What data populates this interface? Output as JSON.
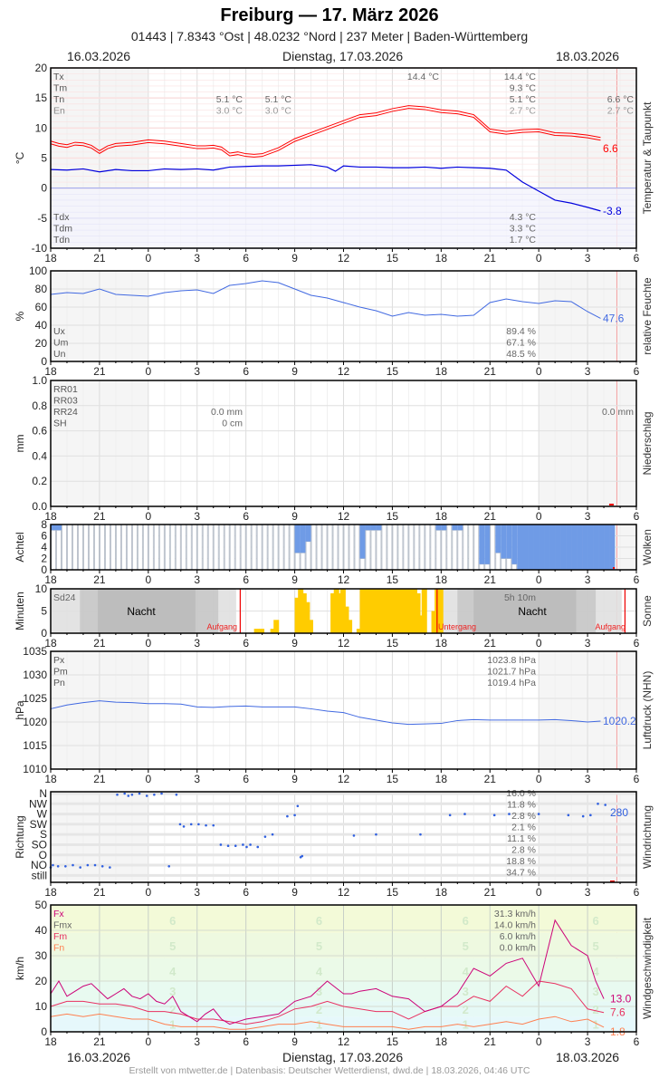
{
  "header": {
    "title": "Freiburg  —  17. März 2026",
    "subtitle": "01443  |  7.8343 °Ost  |  48.0232 °Nord  |  237 Meter  |  Baden-Württemberg",
    "date_left": "16.03.2026",
    "date_center": "Dienstag, 17.03.2026",
    "date_right": "18.03.2026"
  },
  "footer": "Erstellt von mtwetter.de | Datenbasis: Deutscher Wetterdienst, dwd.de | 18.03.2026, 04:46 UTC",
  "x_ticks": [
    "18",
    "21",
    "0",
    "3",
    "6",
    "9",
    "12",
    "15",
    "18",
    "21",
    "0",
    "3",
    "6"
  ],
  "colors": {
    "temp": "#ff0000",
    "dew": "#0000dd",
    "humidity": "#4169e1",
    "cloud": "#6f9be6",
    "sun": "#ffcc00",
    "pressure": "#4169e1",
    "dir": "#3060e0",
    "fx": "#cc0077",
    "fm": "#e83060",
    "fn": "#ff7f50"
  },
  "chart_data": [
    {
      "id": "temperature",
      "type": "line",
      "title": "Temperatur & Taupunkt",
      "ylabel": "°C",
      "ylim": [
        -10,
        20
      ],
      "yticks": [
        "20",
        "15",
        "10",
        "5",
        "0",
        "-5",
        "-10"
      ],
      "legend_left": [
        "Tx",
        "Tm",
        "Tn",
        "En"
      ],
      "legend_left_bottom": [
        "Tdx",
        "Tdm",
        "Tdn"
      ],
      "annotations": {
        "col1": [
          "5.1 °C",
          "3.0 °C"
        ],
        "col2": [
          "5.1 °C",
          "3.0 °C"
        ],
        "max_today": "14.4 °C",
        "today": [
          "14.4 °C",
          "9.3 °C",
          "5.1 °C",
          "2.7 °C"
        ],
        "next": [
          "6.6 °C",
          "2.7 °C"
        ],
        "dew_today": [
          "4.3 °C",
          "3.3 °C",
          "1.7 °C"
        ]
      },
      "series": [
        {
          "name": "Temperatur",
          "last": "6.6",
          "x": [
            0,
            0.5,
            1,
            1.5,
            2,
            2.5,
            3,
            3.5,
            4,
            5,
            6,
            7,
            8,
            9,
            9.5,
            10,
            10.5,
            11,
            11.5,
            12,
            12.5,
            13,
            14,
            15,
            16,
            17,
            18,
            19,
            20,
            21,
            22,
            23,
            24,
            25,
            26,
            27,
            28,
            29,
            30,
            31,
            32,
            33,
            33.8
          ],
          "values": [
            7.6,
            7.2,
            7.0,
            7.4,
            7.3,
            6.9,
            6.0,
            6.8,
            7.2,
            7.4,
            7.8,
            7.6,
            7.2,
            6.8,
            6.8,
            6.9,
            6.6,
            5.6,
            5.8,
            5.5,
            5.4,
            5.5,
            6.5,
            8.0,
            9.0,
            10.0,
            11.0,
            12.0,
            12.3,
            13.0,
            13.5,
            13.3,
            12.8,
            12.6,
            12.0,
            9.6,
            9.2,
            9.5,
            9.6,
            9.0,
            8.9,
            8.6,
            8.2
          ]
        },
        {
          "name": "Taupunkt",
          "last": "-3.8",
          "x": [
            0,
            1,
            2,
            3,
            4,
            5,
            6,
            7,
            8,
            9,
            10,
            11,
            12,
            13,
            14,
            16,
            17,
            17.5,
            18,
            19,
            20,
            21,
            22,
            23,
            24,
            25,
            26,
            27,
            28,
            29,
            30,
            31,
            32,
            33,
            33.8
          ],
          "values": [
            3.1,
            3.0,
            3.2,
            2.7,
            3.1,
            2.9,
            2.9,
            3.2,
            3.1,
            3.2,
            3.0,
            3.5,
            3.6,
            3.7,
            3.7,
            3.9,
            3.5,
            2.8,
            3.7,
            3.5,
            3.5,
            3.4,
            3.4,
            3.5,
            3.3,
            3.5,
            3.4,
            3.3,
            3.0,
            1.0,
            -0.5,
            -2.0,
            -2.5,
            -3.2,
            -3.8
          ]
        }
      ]
    },
    {
      "id": "humidity",
      "type": "line",
      "title": "relative Feuchte",
      "ylabel": "%",
      "ylim": [
        0,
        100
      ],
      "yticks": [
        "100",
        "80",
        "60",
        "40",
        "20",
        "0"
      ],
      "legend_left": [
        "Ux",
        "Um",
        "Un"
      ],
      "annotations": {
        "today": [
          "89.4 %",
          "67.1 %",
          "48.5 %"
        ]
      },
      "series": [
        {
          "name": "Feuchte",
          "last": "47.6",
          "x": [
            0,
            1,
            2,
            3,
            4,
            5,
            6,
            7,
            8,
            9,
            10,
            11,
            12,
            13,
            14,
            15,
            16,
            17,
            18,
            19,
            20,
            21,
            22,
            23,
            24,
            25,
            26,
            27,
            28,
            29,
            30,
            31,
            32,
            33,
            33.8
          ],
          "values": [
            74,
            76,
            75,
            80,
            74,
            73,
            72,
            76,
            78,
            79,
            75,
            84,
            86,
            89,
            87,
            80,
            73,
            70,
            65,
            60,
            56,
            50,
            54,
            51,
            52,
            50,
            51,
            65,
            69,
            66,
            64,
            67,
            66,
            55,
            47.6
          ]
        }
      ]
    },
    {
      "id": "precipitation",
      "type": "bar",
      "title": "Niederschlag",
      "ylabel": "mm",
      "ylim": [
        0,
        1.0
      ],
      "yticks": [
        "1.0",
        "0.8",
        "0.6",
        "0.4",
        "0.2",
        "0.0"
      ],
      "legend_left": [
        "RR01",
        "RR03",
        "RR24",
        "SH"
      ],
      "annotations": {
        "today": [
          "0.0 mm",
          "0 cm"
        ],
        "next": "0.0 mm"
      },
      "values": []
    },
    {
      "id": "clouds",
      "type": "bar",
      "title": "Wolken",
      "ylabel": "Achtel",
      "ylim": [
        0,
        8
      ],
      "yticks": [
        "8",
        "6",
        "4",
        "2",
        "0"
      ],
      "overcast_segments_hours": [
        [
          0,
          0.6,
          7
        ],
        [
          15,
          15.5,
          3
        ],
        [
          15.5,
          15.8,
          5
        ],
        [
          18.8,
          19.3,
          2
        ],
        [
          19.3,
          20.3,
          7
        ],
        [
          23.5,
          24,
          7
        ],
        [
          24.0,
          24.5,
          8
        ],
        [
          24.5,
          25,
          7
        ],
        [
          26.3,
          26.8,
          1
        ],
        [
          27,
          27.5,
          3
        ],
        [
          27.5,
          28,
          2
        ],
        [
          28,
          28.5,
          1
        ],
        [
          28.5,
          34.5,
          0
        ]
      ]
    },
    {
      "id": "sunshine",
      "type": "bar",
      "title": "Sonne",
      "ylabel": "Minuten",
      "ylim": [
        0,
        10
      ],
      "yticks": [
        "10",
        "5",
        "0"
      ],
      "legend_left": [
        "Sd24"
      ],
      "annotations": {
        "night1": "Nacht",
        "night2": "Nacht",
        "sunrise1": "Aufgang",
        "sunset": "Untergang",
        "sunrise2": "Aufgang",
        "total": "5h 10m"
      },
      "x": [
        12.5,
        12.8,
        13.5,
        13.7,
        15.0,
        15.2,
        15.4,
        15.6,
        15.8,
        16.0,
        17.2,
        17.4,
        17.6,
        17.8,
        18.0,
        18.2,
        18.6,
        18.8,
        19.0,
        19.2,
        19.4,
        19.6,
        19.8,
        20.0,
        20.2,
        20.4,
        20.6,
        20.8,
        21.0,
        21.2,
        21.4,
        21.6,
        21.8,
        22.0,
        22.2,
        22.4,
        22.6,
        22.8,
        23.0,
        23.2,
        23.4,
        23.6,
        23.8
      ],
      "values": [
        1,
        1,
        1,
        3,
        8,
        10,
        9,
        7,
        3,
        0,
        9,
        10,
        9,
        10,
        6,
        3,
        0,
        1,
        10,
        10,
        10,
        10,
        10,
        10,
        10,
        10,
        10,
        10,
        10,
        10,
        10,
        10,
        10,
        10,
        10,
        9,
        4,
        10,
        0,
        0,
        5,
        10,
        10
      ]
    },
    {
      "id": "pressure",
      "type": "line",
      "title": "Luftdruck (NHN)",
      "ylabel": "hPa",
      "ylim": [
        1010,
        1035
      ],
      "yticks": [
        "1035",
        "1030",
        "1025",
        "1020",
        "1015",
        "1010"
      ],
      "legend_left": [
        "Px",
        "Pm",
        "Pn"
      ],
      "annotations": {
        "today": [
          "1023.8 hPa",
          "1021.7 hPa",
          "1019.4 hPa"
        ]
      },
      "series": [
        {
          "name": "Luftdruck",
          "last": "1020.2",
          "x": [
            0,
            1,
            2,
            3,
            4,
            5,
            6,
            7,
            8,
            9,
            10,
            11,
            12,
            13,
            14,
            15,
            16,
            17,
            18,
            19,
            20,
            21,
            22,
            23,
            24,
            25,
            26,
            27,
            28,
            29,
            30,
            31,
            32,
            33,
            33.8
          ],
          "values": [
            1022.8,
            1023.6,
            1024.1,
            1024.5,
            1024.2,
            1024.1,
            1023.9,
            1023.9,
            1023.8,
            1023.2,
            1023.1,
            1023.3,
            1023.4,
            1023.2,
            1023.2,
            1023.2,
            1022.8,
            1022.3,
            1022.0,
            1021.0,
            1020.4,
            1019.8,
            1019.5,
            1019.6,
            1019.7,
            1020.3,
            1020.5,
            1020.4,
            1020.4,
            1020.4,
            1020.4,
            1020.5,
            1020.3,
            1020.0,
            1020.2
          ]
        }
      ]
    },
    {
      "id": "wind_direction",
      "type": "scatter",
      "title": "Windrichtung",
      "ylabel": "Richtung",
      "categories": [
        "N",
        "NW",
        "W",
        "SW",
        "S",
        "SO",
        "O",
        "NO",
        "still"
      ],
      "annotations": {
        "percent": [
          "16.0 %",
          "11.8 %",
          "2.8 %",
          "2.1 %",
          "11.1 %",
          "2.8 %",
          "18.8 %",
          "34.7 %"
        ],
        "last": "280"
      },
      "points_hours_deg": [
        [
          0,
          220
        ],
        [
          0.3,
          210
        ],
        [
          1,
          215
        ],
        [
          2,
          215
        ],
        [
          3,
          210
        ],
        [
          4,
          205
        ],
        [
          5,
          210
        ],
        [
          6,
          210
        ],
        [
          7,
          215
        ],
        [
          8,
          205
        ],
        [
          9,
          200
        ],
        [
          10,
          195
        ],
        [
          10.5,
          190
        ],
        [
          11,
          200
        ],
        [
          12,
          195
        ],
        [
          13,
          190
        ],
        [
          14,
          200
        ],
        [
          15,
          195
        ],
        [
          16,
          230
        ],
        [
          17,
          185
        ],
        [
          17.5,
          60
        ],
        [
          18,
          55
        ],
        [
          19,
          60
        ],
        [
          20,
          45
        ],
        [
          21,
          65
        ],
        [
          22,
          50
        ],
        [
          23,
          330
        ],
        [
          24,
          335
        ],
        [
          25,
          320
        ],
        [
          26,
          300
        ],
        [
          26.5,
          310
        ],
        [
          27,
          330
        ],
        [
          28,
          325
        ],
        [
          29,
          340
        ],
        [
          30,
          0
        ],
        [
          32,
          85
        ],
        [
          33,
          95
        ],
        [
          33.4,
          130
        ],
        [
          33.8,
          280
        ],
        [
          34,
          290
        ],
        [
          41,
          350
        ],
        [
          44,
          0
        ],
        [
          50,
          0
        ],
        [
          54,
          80
        ],
        [
          56,
          75
        ],
        [
          60,
          80
        ],
        [
          62,
          75
        ],
        [
          66,
          90
        ],
        [
          70,
          95
        ],
        [
          72,
          100
        ],
        [
          73,
          110
        ],
        [
          74,
          120
        ],
        [
          75,
          125
        ],
        [
          75.5,
          280
        ],
        [
          75.8,
          285
        ]
      ]
    },
    {
      "id": "wind_speed",
      "type": "line",
      "title": "Windgeschwindigkeit",
      "ylabel": "km/h",
      "ylim": [
        0,
        50
      ],
      "yticks": [
        "50",
        "40",
        "30",
        "20",
        "10",
        "0"
      ],
      "legend_left": [
        "Fx",
        "Fmx",
        "Fm",
        "Fn"
      ],
      "bft_labels": [
        "6",
        "5",
        "4",
        "3",
        "2",
        "1"
      ],
      "annotations": {
        "today": [
          "31.3 km/h",
          "14.0 km/h",
          "6.0 km/h",
          "0.0 km/h"
        ]
      },
      "series": [
        {
          "name": "Fx",
          "last": "13.0",
          "x": [
            0,
            0.5,
            1,
            1.5,
            2,
            2.5,
            3,
            3.5,
            4,
            4.5,
            5,
            5.5,
            6,
            6.5,
            7,
            7.5,
            8,
            8.5,
            9,
            9.5,
            10,
            10.5,
            11,
            11.5,
            12,
            13,
            14,
            15,
            16,
            17,
            18,
            18.5,
            19,
            20,
            21,
            22,
            23,
            24,
            25,
            26,
            27,
            28,
            29,
            30,
            31,
            32,
            33,
            33.5,
            34
          ],
          "values": [
            15,
            20,
            14,
            16,
            18,
            19,
            16,
            13,
            15,
            17,
            14,
            13,
            15,
            12,
            11,
            14,
            8,
            6,
            4,
            7,
            9,
            5,
            3,
            4,
            5,
            6,
            7,
            12,
            14,
            20,
            15,
            15,
            16,
            17,
            14,
            13,
            8,
            10,
            15,
            25,
            22,
            27,
            29,
            18,
            44,
            34,
            30,
            20,
            13
          ]
        },
        {
          "name": "Fm",
          "last": "7.6",
          "x": [
            0,
            1,
            2,
            3,
            4,
            5,
            6,
            7,
            8,
            9,
            10,
            11,
            12,
            13,
            14,
            15,
            16,
            17,
            18,
            19,
            20,
            21,
            22,
            23,
            24,
            25,
            26,
            27,
            28,
            29,
            30,
            31,
            32,
            33,
            34
          ],
          "values": [
            10,
            12,
            12,
            11,
            11,
            10,
            8,
            8,
            7,
            5,
            5,
            4,
            3,
            4,
            6,
            9,
            10,
            12,
            10,
            9,
            8,
            8,
            5,
            8,
            10,
            10,
            14,
            12,
            18,
            14,
            20,
            19,
            17,
            9,
            7.6
          ]
        },
        {
          "name": "Fn",
          "last": "1.8",
          "x": [
            0,
            1,
            2,
            3,
            4,
            5,
            6,
            7,
            8,
            9,
            10,
            11,
            12,
            13,
            14,
            15,
            16,
            17,
            18,
            19,
            20,
            21,
            22,
            23,
            24,
            25,
            26,
            27,
            28,
            29,
            30,
            31,
            32,
            33,
            34
          ],
          "values": [
            6,
            7,
            6,
            7,
            6,
            5,
            5,
            3,
            2,
            2,
            2,
            1,
            1,
            2,
            3,
            3,
            4,
            3,
            2,
            2,
            2,
            2,
            1,
            2,
            2,
            3,
            2,
            3,
            4,
            3,
            5,
            6,
            4,
            5,
            1.8
          ]
        }
      ]
    }
  ]
}
